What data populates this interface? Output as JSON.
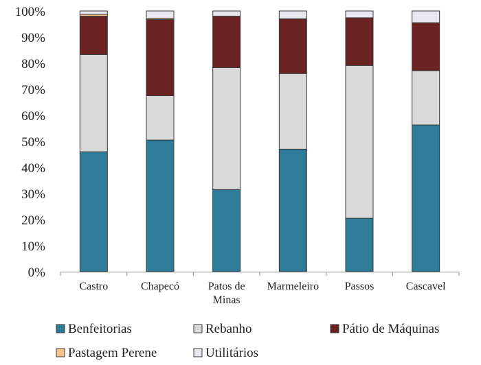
{
  "chart_data": {
    "type": "bar",
    "stacked": true,
    "percent": true,
    "categories": [
      "Castro",
      "Chapecó",
      "Patos de Minas",
      "Marmeleiro",
      "Passos",
      "Cascavel"
    ],
    "series": [
      {
        "name": "Benfeitorias",
        "color": "#2e7c98",
        "values": [
          46,
          50.5,
          31.5,
          47,
          20.5,
          56.3
        ]
      },
      {
        "name": "Rebanho",
        "color": "#d9d9d9",
        "values": [
          37.3,
          17,
          46.8,
          29,
          58.6,
          20.8
        ]
      },
      {
        "name": "Pátio de Máquinas",
        "color": "#6b2222",
        "values": [
          14.7,
          29.2,
          19.7,
          21,
          18.3,
          18.4
        ]
      },
      {
        "name": "Pastagem Perene",
        "color": "#f5c28c",
        "values": [
          0.7,
          0.5,
          0,
          0,
          0,
          0
        ]
      },
      {
        "name": "Utilitários",
        "color": "#e8e6ee",
        "values": [
          1.3,
          2.8,
          2,
          3,
          2.6,
          4.5
        ]
      }
    ],
    "y_ticks": [
      "0%",
      "10%",
      "20%",
      "30%",
      "40%",
      "50%",
      "60%",
      "70%",
      "80%",
      "90%",
      "100%"
    ],
    "ylim": [
      0,
      100
    ],
    "grid": false,
    "legend_position": "bottom",
    "title": "",
    "xlabel": "",
    "ylabel": ""
  }
}
